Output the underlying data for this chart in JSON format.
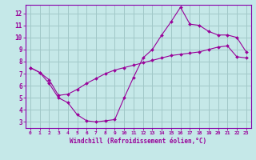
{
  "xlabel": "Windchill (Refroidissement éolien,°C)",
  "bg_color": "#c5e8e8",
  "line_color": "#990099",
  "grid_color": "#a0c8c8",
  "spine_color": "#8800aa",
  "xlim": [
    -0.5,
    23.5
  ],
  "ylim": [
    2.5,
    12.7
  ],
  "yticks": [
    3,
    4,
    5,
    6,
    7,
    8,
    9,
    10,
    11,
    12
  ],
  "xticks": [
    0,
    1,
    2,
    3,
    4,
    5,
    6,
    7,
    8,
    9,
    10,
    11,
    12,
    13,
    14,
    15,
    16,
    17,
    18,
    19,
    20,
    21,
    22,
    23
  ],
  "line1_x": [
    0,
    1,
    2,
    3,
    4,
    5,
    6,
    7,
    8,
    9,
    10,
    11,
    12,
    13,
    14,
    15,
    16,
    17,
    18,
    19,
    20,
    21,
    22,
    23
  ],
  "line1_y": [
    7.5,
    7.1,
    6.2,
    5.0,
    4.6,
    3.6,
    3.1,
    3.0,
    3.1,
    3.2,
    5.0,
    6.7,
    8.3,
    9.0,
    10.2,
    11.3,
    12.5,
    11.1,
    11.0,
    10.5,
    10.2,
    10.2,
    10.0,
    8.8
  ],
  "line2_x": [
    0,
    1,
    2,
    3,
    4,
    5,
    6,
    7,
    8,
    9,
    10,
    11,
    12,
    13,
    14,
    15,
    16,
    17,
    18,
    19,
    20,
    21,
    22,
    23
  ],
  "line2_y": [
    7.5,
    7.1,
    6.5,
    5.2,
    5.3,
    5.7,
    6.2,
    6.6,
    7.0,
    7.3,
    7.5,
    7.7,
    7.9,
    8.1,
    8.3,
    8.5,
    8.6,
    8.7,
    8.8,
    9.0,
    9.2,
    9.3,
    8.4,
    8.3
  ]
}
